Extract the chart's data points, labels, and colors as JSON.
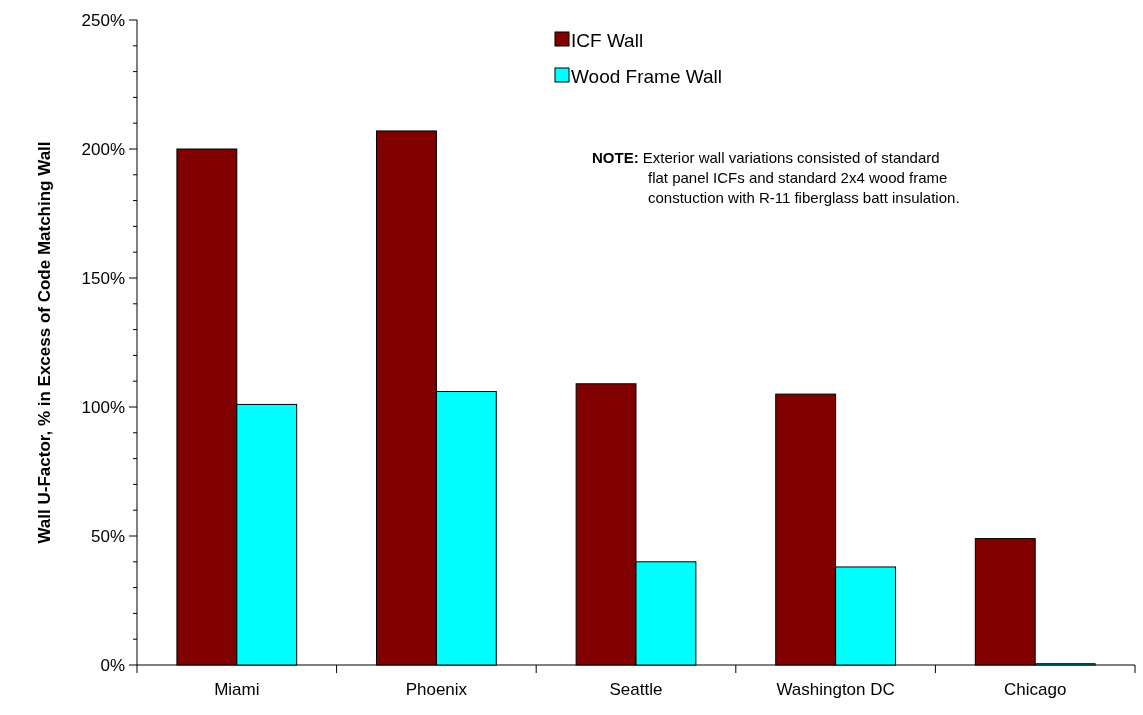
{
  "chart_data": {
    "type": "bar",
    "ylabel": "Wall U-Factor, % in Excess of Code Matching Wall",
    "categories": [
      "Miami",
      "Phoenix",
      "Seattle",
      "Washington DC",
      "Chicago"
    ],
    "series": [
      {
        "name": "ICF Wall",
        "color": "#800000",
        "values": [
          200,
          207,
          109,
          105,
          49
        ]
      },
      {
        "name": "Wood Frame Wall",
        "color": "#00ffff",
        "values": [
          101,
          106,
          40,
          38,
          0.5
        ]
      }
    ],
    "ylim": [
      0,
      250
    ],
    "yticks": [
      {
        "value": 0,
        "label": "0%"
      },
      {
        "value": 10,
        "label": null
      },
      {
        "value": 20,
        "label": null
      },
      {
        "value": 30,
        "label": null
      },
      {
        "value": 40,
        "label": null
      },
      {
        "value": 50,
        "label": "50%"
      },
      {
        "value": 60,
        "label": null
      },
      {
        "value": 70,
        "label": null
      },
      {
        "value": 80,
        "label": null
      },
      {
        "value": 90,
        "label": null
      },
      {
        "value": 100,
        "label": "100%"
      },
      {
        "value": 110,
        "label": null
      },
      {
        "value": 120,
        "label": null
      },
      {
        "value": 130,
        "label": null
      },
      {
        "value": 140,
        "label": null
      },
      {
        "value": 150,
        "label": "150%"
      },
      {
        "value": 160,
        "label": null
      },
      {
        "value": 170,
        "label": null
      },
      {
        "value": 180,
        "label": null
      },
      {
        "value": 190,
        "label": null
      },
      {
        "value": 200,
        "label": "200%"
      },
      {
        "value": 210,
        "label": null
      },
      {
        "value": 220,
        "label": null
      },
      {
        "value": 230,
        "label": null
      },
      {
        "value": 240,
        "label": null
      },
      {
        "value": 250,
        "label": "250%"
      }
    ],
    "legend": "top right",
    "annotations": [
      "NOTE: Exterior wall variations consisted of standard\nflat panel ICFs and standard 2x4 wood frame\nconstuction with R-11 fiberglass batt insulation."
    ]
  }
}
